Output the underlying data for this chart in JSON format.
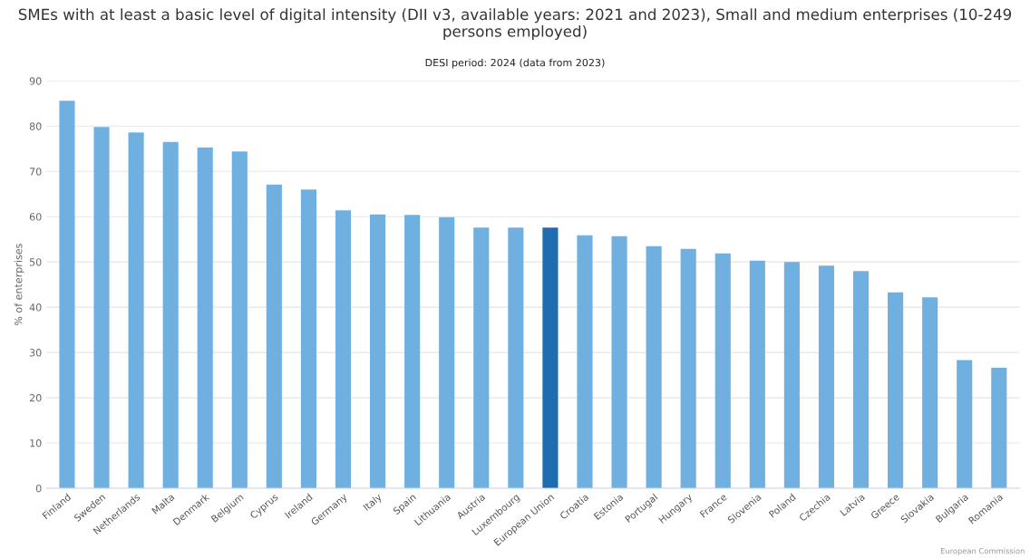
{
  "chart_data": {
    "type": "bar",
    "title": "SMEs with at least a basic level of digital intensity (DII v3, available years: 2021 and 2023), Small and medium enterprises (10-249 persons employed)",
    "subtitle": "DESI period: 2024 (data from 2023)",
    "ylabel": "% of enterprises",
    "annotations": [
      "European Commission"
    ],
    "categories": [
      "Finland",
      "Sweden",
      "Netherlands",
      "Malta",
      "Denmark",
      "Belgium",
      "Cyprus",
      "Ireland",
      "Germany",
      "Italy",
      "Spain",
      "Lithuania",
      "Austria",
      "Luxembourg",
      "European Union",
      "Croatia",
      "Estonia",
      "Portugal",
      "Hungary",
      "France",
      "Slovenia",
      "Poland",
      "Czechia",
      "Latvia",
      "Greece",
      "Slovakia",
      "Bulgaria",
      "Romania"
    ],
    "values": [
      85.6,
      79.8,
      78.6,
      76.5,
      75.3,
      74.4,
      67.1,
      66.0,
      61.4,
      60.5,
      60.4,
      59.9,
      57.6,
      57.6,
      57.6,
      55.9,
      55.7,
      53.5,
      52.9,
      51.9,
      50.3,
      50.0,
      49.2,
      48.0,
      43.3,
      42.2,
      28.3,
      26.6
    ],
    "colors": [
      "#6fb0e0",
      "#6fb0e0",
      "#6fb0e0",
      "#6fb0e0",
      "#6fb0e0",
      "#6fb0e0",
      "#6fb0e0",
      "#6fb0e0",
      "#6fb0e0",
      "#6fb0e0",
      "#6fb0e0",
      "#6fb0e0",
      "#6fb0e0",
      "#6fb0e0",
      "#1f6db0",
      "#6fb0e0",
      "#6fb0e0",
      "#6fb0e0",
      "#6fb0e0",
      "#6fb0e0",
      "#6fb0e0",
      "#6fb0e0",
      "#6fb0e0",
      "#6fb0e0",
      "#6fb0e0",
      "#6fb0e0",
      "#6fb0e0",
      "#6fb0e0"
    ],
    "ylim": [
      0,
      90
    ],
    "yticks": [
      0,
      10,
      20,
      30,
      40,
      50,
      60,
      70,
      80,
      90
    ],
    "grid": "y",
    "legend": false
  }
}
